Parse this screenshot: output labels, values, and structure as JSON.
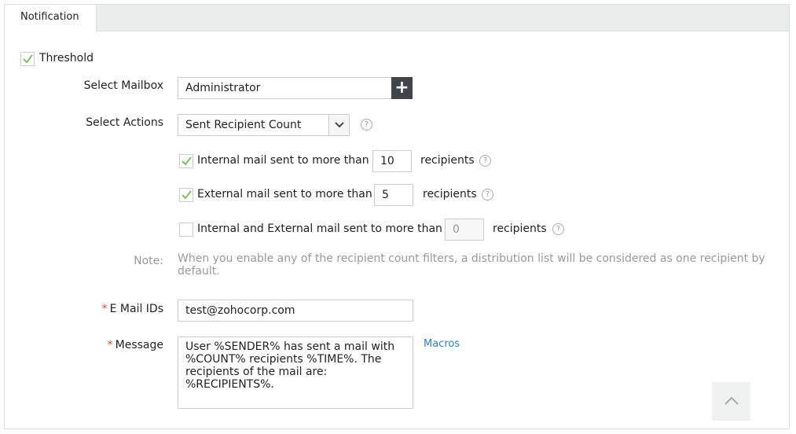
{
  "tabs": [
    {
      "label": "Notification",
      "active": true
    }
  ],
  "threshold": {
    "label": "Threshold",
    "checked": true
  },
  "mailbox": {
    "label": "Select Mailbox",
    "value": "Administrator",
    "add_icon": "plus-icon"
  },
  "actions": {
    "label": "Select Actions",
    "value": "Sent Recipient Count",
    "help_icon": "question-icon"
  },
  "filters": [
    {
      "label": "Internal mail sent to more than",
      "value": "10",
      "suffix": "recipients",
      "checked": true,
      "disabled": false
    },
    {
      "label": "External mail sent to more than",
      "value": "5",
      "suffix": "recipients",
      "checked": true,
      "disabled": false
    },
    {
      "label": "Internal and External mail sent to more than",
      "value": "0",
      "suffix": "recipients",
      "checked": false,
      "disabled": true
    }
  ],
  "note": {
    "label": "Note:",
    "text": "When you enable any of the recipient count filters, a distribution list will be considered as one recipient by default."
  },
  "email": {
    "label": "E Mail IDs",
    "required": "*",
    "value": "test@zohocorp.com"
  },
  "message": {
    "label": "Message",
    "required": "*",
    "value": "User %SENDER% has sent a mail with %COUNT% recipients %TIME%. The recipients of the mail are: %RECIPIENTS%.",
    "macros_link": "Macros"
  },
  "colors": {
    "check": "#6abf4b",
    "accent_link": "#2a7ec7",
    "dark_button": "#3f4549",
    "required": "#e6463c"
  }
}
